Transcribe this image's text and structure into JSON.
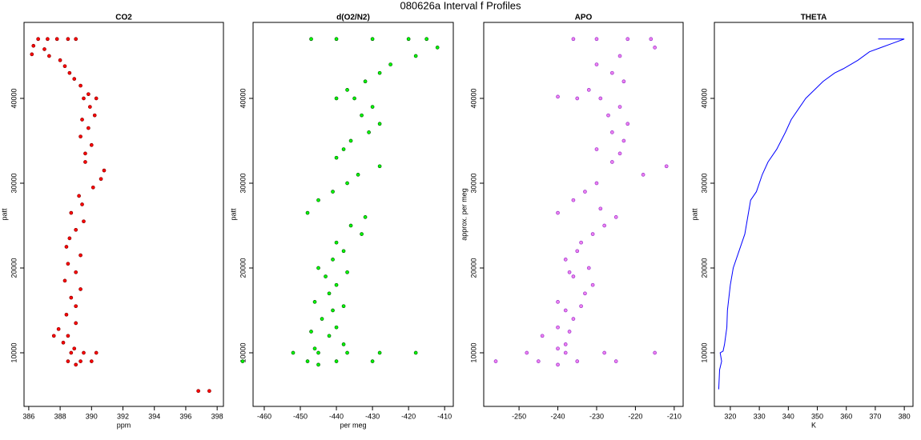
{
  "title": "080626a   Interval f Profiles",
  "chart_data": [
    {
      "type": "scatter",
      "title": "CO2",
      "x_label": "ppm",
      "y_label": "patt",
      "xlim": [
        385.7,
        398.4
      ],
      "ylim": [
        3680,
        48960
      ],
      "xticks": [
        386,
        388,
        390,
        392,
        394,
        396,
        398
      ],
      "yticks": [
        10000,
        20000,
        30000,
        40000
      ],
      "series": [
        {
          "color": "#ff0000",
          "edge_color": "#8b0000",
          "x": [
            386.6,
            387.2,
            387.8,
            388.5,
            389.0,
            386.3,
            386.2,
            387.0,
            387.3,
            388.0,
            388.3,
            388.6,
            388.9,
            389.3,
            389.8,
            389.5,
            390.3,
            389.9,
            390.2,
            389.4,
            389.8,
            389.3,
            390.0,
            389.6,
            389.6,
            390.8,
            390.6,
            390.1,
            389.2,
            389.4,
            388.7,
            389.5,
            389.0,
            388.6,
            388.4,
            389.3,
            388.5,
            389.0,
            388.3,
            389.3,
            388.7,
            389.0,
            388.4,
            389.0,
            387.9,
            388.5,
            387.6,
            388.2,
            388.9,
            389.5,
            388.7,
            390.3,
            389.3,
            388.5,
            390.0,
            389.0,
            396.8,
            397.5
          ],
          "values": [
            47000,
            47000,
            47000,
            47000,
            47000,
            46200,
            45200,
            45800,
            45000,
            44500,
            43800,
            43000,
            42300,
            41500,
            40500,
            40000,
            40000,
            39000,
            38000,
            37500,
            36500,
            35500,
            34500,
            33500,
            32500,
            31500,
            30500,
            29500,
            28500,
            27500,
            26500,
            25500,
            24500,
            23500,
            22500,
            21500,
            20500,
            19500,
            18500,
            17500,
            16500,
            15500,
            14500,
            13500,
            12800,
            12000,
            12000,
            11200,
            10500,
            10000,
            10000,
            10000,
            9000,
            9000,
            9000,
            8600,
            5500,
            5500
          ]
        }
      ]
    },
    {
      "type": "scatter",
      "title": "d(O2/N2)",
      "x_label": "per meg",
      "y_label": "patt",
      "xlim": [
        -463.1,
        -407.6
      ],
      "ylim": [
        3680,
        48960
      ],
      "xticks": [
        -460,
        -450,
        -440,
        -430,
        -420,
        -410
      ],
      "yticks": [
        10000,
        20000,
        30000,
        40000
      ],
      "series": [
        {
          "color": "#00ff00",
          "edge_color": "#006400",
          "x": [
            -447,
            -440,
            -430,
            -420,
            -415,
            -412,
            -418,
            -425,
            -428,
            -432,
            -437,
            -440,
            -435,
            -430,
            -433,
            -428,
            -431,
            -436,
            -438,
            -440,
            -428,
            -434,
            -437,
            -441,
            -445,
            -448,
            -432,
            -436,
            -433,
            -440,
            -438,
            -441,
            -445,
            -437,
            -443,
            -440,
            -442,
            -446,
            -438,
            -441,
            -444,
            -440,
            -447,
            -442,
            -438,
            -446,
            -452,
            -445,
            -437,
            -428,
            -418,
            -466,
            -448,
            -440,
            -430,
            -445
          ],
          "values": [
            47000,
            47000,
            47000,
            47000,
            47000,
            46000,
            45000,
            44000,
            43000,
            42000,
            41000,
            40000,
            40000,
            39000,
            38000,
            37000,
            36000,
            35000,
            34000,
            33000,
            32000,
            31000,
            30000,
            29000,
            28000,
            26500,
            26000,
            25000,
            24000,
            23000,
            22000,
            21000,
            20000,
            19500,
            19000,
            18000,
            17000,
            16000,
            15500,
            15000,
            14000,
            13000,
            12500,
            12000,
            11000,
            10500,
            10000,
            10000,
            10000,
            10000,
            10000,
            9000,
            9000,
            9000,
            9000,
            8600
          ]
        }
      ]
    },
    {
      "type": "scatter",
      "title": "APO",
      "y_label": "approx. per meg",
      "xlim": [
        -259.1,
        -207.7
      ],
      "ylim": [
        3680,
        48960
      ],
      "xticks": [
        -250,
        -240,
        -230,
        -220,
        -210
      ],
      "yticks": [
        10000,
        20000,
        30000,
        40000
      ],
      "series": [
        {
          "color": "#ee82ee",
          "edge_color": "#9932cc",
          "x": [
            -236,
            -230,
            -222,
            -216,
            -215,
            -224,
            -230,
            -226,
            -223,
            -232,
            -235,
            -229,
            -240,
            -224,
            -227,
            -222,
            -226,
            -223,
            -230,
            -224,
            -226,
            -212,
            -218,
            -230,
            -233,
            -236,
            -229,
            -240,
            -225,
            -228,
            -231,
            -234,
            -235,
            -238,
            -232,
            -237,
            -236,
            -231,
            -233,
            -240,
            -234,
            -238,
            -236,
            -240,
            -237,
            -244,
            -238,
            -240,
            -248,
            -238,
            -228,
            -215,
            -256,
            -245,
            -235,
            -225,
            -240
          ],
          "values": [
            47000,
            47000,
            47000,
            47000,
            46000,
            45000,
            44000,
            43000,
            42000,
            41000,
            40000,
            40000,
            40200,
            39000,
            38000,
            37000,
            36000,
            35000,
            34000,
            33500,
            32500,
            32000,
            31000,
            30000,
            29000,
            28000,
            27000,
            26500,
            26000,
            25000,
            24000,
            23000,
            22000,
            21000,
            20000,
            19500,
            19000,
            18000,
            17000,
            16000,
            15500,
            15000,
            14000,
            13000,
            12500,
            12000,
            11000,
            10500,
            10000,
            10000,
            10000,
            10000,
            9000,
            9000,
            9000,
            9000,
            8600
          ]
        }
      ]
    },
    {
      "type": "line",
      "title": "THETA",
      "x_label": "K",
      "y_label": "patt",
      "xlim": [
        314.5,
        383.0
      ],
      "ylim": [
        3680,
        48960
      ],
      "xticks": [
        320,
        330,
        340,
        350,
        360,
        370,
        380
      ],
      "yticks": [
        10000,
        20000,
        30000,
        40000
      ],
      "series": [
        {
          "color": "#0000ff",
          "x": [
            316,
            316.3,
            317,
            316.5,
            317.5,
            318,
            318.8,
            319,
            320,
            321,
            323,
            325,
            326,
            327,
            329,
            331,
            333,
            336,
            339,
            341,
            344,
            346,
            349,
            352,
            356,
            359,
            364,
            368,
            372,
            376,
            380,
            371
          ],
          "values": [
            5700,
            8000,
            9000,
            10000,
            10200,
            11000,
            13000,
            15000,
            18000,
            20000,
            22000,
            24000,
            26000,
            28000,
            29000,
            31000,
            32500,
            34000,
            36000,
            37500,
            39000,
            40000,
            41000,
            42000,
            43000,
            43500,
            44500,
            45500,
            46000,
            46500,
            47000,
            47000
          ]
        }
      ]
    }
  ]
}
